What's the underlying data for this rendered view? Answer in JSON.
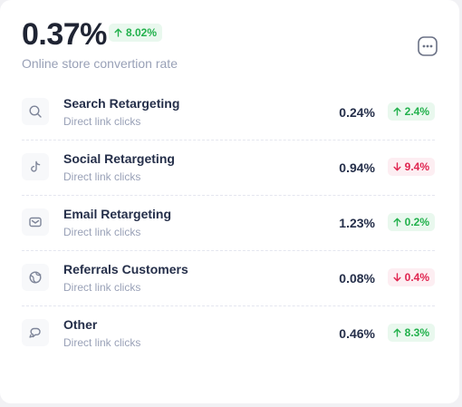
{
  "summary": {
    "value": "0.37%",
    "change": "8.02%",
    "change_direction": "up",
    "subtitle": "Online store convertion rate"
  },
  "menu_icon": "more-dots-icon",
  "colors": {
    "up_text": "#22b14c",
    "up_bg": "#e9f8ee",
    "down_text": "#e0244f",
    "down_bg": "#fdeef2"
  },
  "rows": [
    {
      "icon": "search-icon",
      "name": "Search Retargeting",
      "sub": "Direct link clicks",
      "pct": "0.24%",
      "change": "2.4%",
      "direction": "up"
    },
    {
      "icon": "tiktok-icon",
      "name": "Social Retargeting",
      "sub": "Direct link clicks",
      "pct": "0.94%",
      "change": "9.4%",
      "direction": "down"
    },
    {
      "icon": "mail-icon",
      "name": "Email Retargeting",
      "sub": "Direct link clicks",
      "pct": "1.23%",
      "change": "0.2%",
      "direction": "up"
    },
    {
      "icon": "globe-icon",
      "name": "Referrals Customers",
      "sub": "Direct link clicks",
      "pct": "0.08%",
      "change": "0.4%",
      "direction": "down"
    },
    {
      "icon": "chat-icon",
      "name": "Other",
      "sub": "Direct link clicks",
      "pct": "0.46%",
      "change": "8.3%",
      "direction": "up"
    }
  ]
}
